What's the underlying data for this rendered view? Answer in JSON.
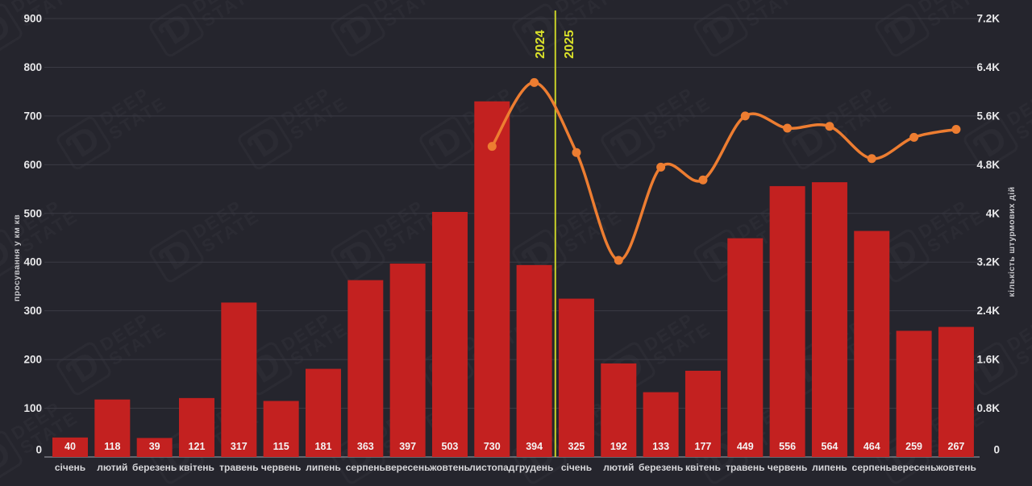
{
  "watermark": {
    "glyph": "Ɗ",
    "line1": "DEEP",
    "line2": "STATE"
  },
  "chart_data": {
    "type": "bar",
    "title": "",
    "categories": [
      "січень",
      "лютий",
      "березень",
      "квітень",
      "травень",
      "червень",
      "липень",
      "серпень",
      "вересень",
      "жовтень",
      "листопад",
      "грудень",
      "січень",
      "лютий",
      "березень",
      "квітень",
      "травень",
      "червень",
      "липень",
      "серпень",
      "вересень",
      "жовтень"
    ],
    "series": [
      {
        "name": "просування у км кв",
        "type": "bar",
        "axis": "left",
        "values": [
          40,
          118,
          39,
          121,
          317,
          115,
          181,
          363,
          397,
          503,
          730,
          394,
          325,
          192,
          133,
          177,
          449,
          556,
          564,
          464,
          259,
          267
        ]
      },
      {
        "name": "кількість штурмових дій",
        "type": "line",
        "axis": "right",
        "values": [
          null,
          null,
          null,
          null,
          null,
          null,
          null,
          null,
          null,
          null,
          5100,
          6150,
          5000,
          3230,
          4760,
          4550,
          5600,
          5400,
          5430,
          4900,
          5250,
          5380
        ]
      }
    ],
    "left_axis": {
      "title": "просування у км кв",
      "ticks": [
        0,
        100,
        200,
        300,
        400,
        500,
        600,
        700,
        800,
        900
      ],
      "max": 900
    },
    "right_axis": {
      "title": "кількість штурмових дій",
      "ticks": [
        "0",
        "0.8K",
        "1.6K",
        "2.4K",
        "3.2K",
        "4K",
        "4.8K",
        "5.6K",
        "6.4K",
        "7.2K"
      ],
      "max": 7200
    },
    "year_divider": {
      "between_categories": [
        11,
        12
      ],
      "label_left": "2024",
      "label_right": "2025"
    },
    "grid": "horizontal",
    "legend": "none",
    "colors": {
      "background": "#25252d",
      "bar": "#c32120",
      "line": "#ed7d31",
      "divider": "#c9d128",
      "grid": "#3b3b44",
      "axis_line": "#8e8e96",
      "tick_text": "#e8e8ea",
      "month_text": "#d6d6d9",
      "value_text": "#f4f4f4",
      "year_text": "#d9e02a",
      "axis_title_text": "#c9c9cd"
    }
  }
}
